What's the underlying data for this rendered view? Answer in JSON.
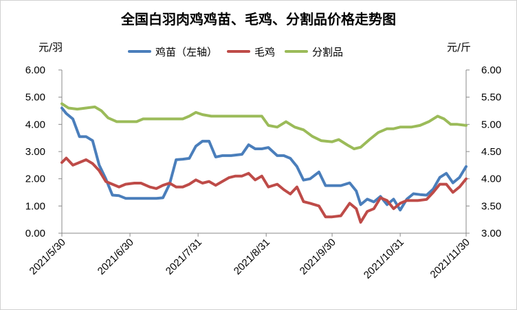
{
  "chart_data": {
    "type": "line",
    "title": "全国白羽肉鸡鸡苗、毛鸡、分割品价格走势图",
    "left_unit": "元/羽",
    "right_unit": "元/斤",
    "yleft_lim": [
      0,
      6
    ],
    "yright_lim": [
      3,
      6
    ],
    "yleft_ticks": [
      "0.00",
      "1.00",
      "2.00",
      "3.00",
      "4.00",
      "5.00",
      "6.00"
    ],
    "yright_ticks": [
      "3.00",
      "3.50",
      "4.00",
      "4.50",
      "5.00",
      "5.50",
      "6.00"
    ],
    "x_ticks": [
      "2021/5/30",
      "2021/6/30",
      "2021/7/31",
      "2021/8/31",
      "2021/9/30",
      "2021/10/31",
      "2021/11/30"
    ],
    "grid": false,
    "legend_position": "top",
    "series": [
      {
        "name": "鸡苗（左轴）",
        "axis": "left",
        "color": "#4a7ebb",
        "points": [
          [
            "2021-05-30",
            4.6
          ],
          [
            "2021-06-01",
            4.4
          ],
          [
            "2021-06-04",
            4.2
          ],
          [
            "2021-06-07",
            3.55
          ],
          [
            "2021-06-10",
            3.55
          ],
          [
            "2021-06-13",
            3.4
          ],
          [
            "2021-06-16",
            2.5
          ],
          [
            "2021-06-19",
            2.0
          ],
          [
            "2021-06-22",
            1.4
          ],
          [
            "2021-06-25",
            1.38
          ],
          [
            "2021-06-28",
            1.28
          ],
          [
            "2021-07-02",
            1.28
          ],
          [
            "2021-07-09",
            1.28
          ],
          [
            "2021-07-12",
            1.28
          ],
          [
            "2021-07-15",
            1.3
          ],
          [
            "2021-07-18",
            1.8
          ],
          [
            "2021-07-21",
            2.7
          ],
          [
            "2021-07-24",
            2.72
          ],
          [
            "2021-07-27",
            2.75
          ],
          [
            "2021-07-30",
            3.2
          ],
          [
            "2021-08-02",
            3.38
          ],
          [
            "2021-08-05",
            3.38
          ],
          [
            "2021-08-08",
            2.8
          ],
          [
            "2021-08-11",
            2.85
          ],
          [
            "2021-08-15",
            2.85
          ],
          [
            "2021-08-20",
            2.9
          ],
          [
            "2021-08-23",
            3.25
          ],
          [
            "2021-08-26",
            3.1
          ],
          [
            "2021-08-29",
            3.1
          ],
          [
            "2021-09-01",
            3.15
          ],
          [
            "2021-09-05",
            2.85
          ],
          [
            "2021-09-08",
            2.85
          ],
          [
            "2021-09-11",
            2.75
          ],
          [
            "2021-09-14",
            2.45
          ],
          [
            "2021-09-17",
            1.95
          ],
          [
            "2021-09-20",
            2.0
          ],
          [
            "2021-09-24",
            2.25
          ],
          [
            "2021-09-27",
            1.75
          ],
          [
            "2021-09-30",
            1.75
          ],
          [
            "2021-10-04",
            1.75
          ],
          [
            "2021-10-08",
            1.85
          ],
          [
            "2021-10-11",
            1.55
          ],
          [
            "2021-10-13",
            1.05
          ],
          [
            "2021-10-16",
            1.25
          ],
          [
            "2021-10-19",
            1.15
          ],
          [
            "2021-10-22",
            1.35
          ],
          [
            "2021-10-25",
            1.05
          ],
          [
            "2021-10-28",
            1.25
          ],
          [
            "2021-10-31",
            0.85
          ],
          [
            "2021-11-03",
            1.25
          ],
          [
            "2021-11-06",
            1.45
          ],
          [
            "2021-11-09",
            1.42
          ],
          [
            "2021-11-12",
            1.4
          ],
          [
            "2021-11-15",
            1.62
          ],
          [
            "2021-11-18",
            2.05
          ],
          [
            "2021-11-21",
            2.2
          ],
          [
            "2021-11-24",
            1.85
          ],
          [
            "2021-11-27",
            2.05
          ],
          [
            "2021-11-30",
            2.45
          ]
        ]
      },
      {
        "name": "毛鸡",
        "axis": "right",
        "color": "#be4b48",
        "points": [
          [
            "2021-05-30",
            4.3
          ],
          [
            "2021-06-01",
            4.38
          ],
          [
            "2021-06-04",
            4.25
          ],
          [
            "2021-06-07",
            4.3
          ],
          [
            "2021-06-10",
            4.35
          ],
          [
            "2021-06-13",
            4.28
          ],
          [
            "2021-06-16",
            4.15
          ],
          [
            "2021-06-19",
            3.95
          ],
          [
            "2021-06-22",
            3.9
          ],
          [
            "2021-06-25",
            3.85
          ],
          [
            "2021-06-28",
            3.9
          ],
          [
            "2021-07-02",
            3.92
          ],
          [
            "2021-07-05",
            3.92
          ],
          [
            "2021-07-09",
            3.85
          ],
          [
            "2021-07-12",
            3.82
          ],
          [
            "2021-07-15",
            3.88
          ],
          [
            "2021-07-18",
            3.92
          ],
          [
            "2021-07-21",
            3.85
          ],
          [
            "2021-07-24",
            3.85
          ],
          [
            "2021-07-27",
            3.9
          ],
          [
            "2021-07-30",
            3.98
          ],
          [
            "2021-08-02",
            3.92
          ],
          [
            "2021-08-05",
            3.95
          ],
          [
            "2021-08-08",
            3.88
          ],
          [
            "2021-08-11",
            3.95
          ],
          [
            "2021-08-14",
            4.02
          ],
          [
            "2021-08-17",
            4.05
          ],
          [
            "2021-08-20",
            4.05
          ],
          [
            "2021-08-23",
            4.1
          ],
          [
            "2021-08-26",
            3.98
          ],
          [
            "2021-08-29",
            4.05
          ],
          [
            "2021-09-01",
            3.85
          ],
          [
            "2021-09-05",
            3.9
          ],
          [
            "2021-09-08",
            3.8
          ],
          [
            "2021-09-11",
            3.72
          ],
          [
            "2021-09-14",
            3.85
          ],
          [
            "2021-09-17",
            3.58
          ],
          [
            "2021-09-20",
            3.55
          ],
          [
            "2021-09-24",
            3.5
          ],
          [
            "2021-09-27",
            3.3
          ],
          [
            "2021-09-30",
            3.3
          ],
          [
            "2021-10-04",
            3.32
          ],
          [
            "2021-10-08",
            3.55
          ],
          [
            "2021-10-11",
            3.45
          ],
          [
            "2021-10-13",
            3.2
          ],
          [
            "2021-10-16",
            3.4
          ],
          [
            "2021-10-19",
            3.45
          ],
          [
            "2021-10-22",
            3.65
          ],
          [
            "2021-10-25",
            3.6
          ],
          [
            "2021-10-28",
            3.45
          ],
          [
            "2021-10-31",
            3.55
          ],
          [
            "2021-11-03",
            3.6
          ],
          [
            "2021-11-08",
            3.6
          ],
          [
            "2021-11-12",
            3.62
          ],
          [
            "2021-11-15",
            3.75
          ],
          [
            "2021-11-18",
            3.9
          ],
          [
            "2021-11-21",
            3.9
          ],
          [
            "2021-11-24",
            3.75
          ],
          [
            "2021-11-27",
            3.85
          ],
          [
            "2021-11-30",
            4.0
          ]
        ]
      },
      {
        "name": "分割品",
        "axis": "right",
        "color": "#9bbb59",
        "points": [
          [
            "2021-05-30",
            5.38
          ],
          [
            "2021-06-02",
            5.3
          ],
          [
            "2021-06-06",
            5.28
          ],
          [
            "2021-06-10",
            5.3
          ],
          [
            "2021-06-14",
            5.32
          ],
          [
            "2021-06-17",
            5.25
          ],
          [
            "2021-06-20",
            5.12
          ],
          [
            "2021-06-24",
            5.05
          ],
          [
            "2021-06-27",
            5.05
          ],
          [
            "2021-06-30",
            5.05
          ],
          [
            "2021-07-03",
            5.05
          ],
          [
            "2021-07-06",
            5.1
          ],
          [
            "2021-07-12",
            5.1
          ],
          [
            "2021-07-18",
            5.1
          ],
          [
            "2021-07-24",
            5.1
          ],
          [
            "2021-07-27",
            5.15
          ],
          [
            "2021-07-30",
            5.22
          ],
          [
            "2021-08-02",
            5.18
          ],
          [
            "2021-08-06",
            5.15
          ],
          [
            "2021-08-12",
            5.15
          ],
          [
            "2021-08-18",
            5.15
          ],
          [
            "2021-08-24",
            5.15
          ],
          [
            "2021-08-29",
            5.15
          ],
          [
            "2021-09-01",
            4.98
          ],
          [
            "2021-09-05",
            4.95
          ],
          [
            "2021-09-09",
            5.05
          ],
          [
            "2021-09-13",
            4.95
          ],
          [
            "2021-09-17",
            4.9
          ],
          [
            "2021-09-21",
            4.78
          ],
          [
            "2021-09-25",
            4.7
          ],
          [
            "2021-09-30",
            4.68
          ],
          [
            "2021-10-03",
            4.72
          ],
          [
            "2021-10-07",
            4.62
          ],
          [
            "2021-10-10",
            4.55
          ],
          [
            "2021-10-13",
            4.58
          ],
          [
            "2021-10-17",
            4.72
          ],
          [
            "2021-10-21",
            4.85
          ],
          [
            "2021-10-25",
            4.92
          ],
          [
            "2021-10-28",
            4.92
          ],
          [
            "2021-10-31",
            4.95
          ],
          [
            "2021-11-05",
            4.95
          ],
          [
            "2021-11-09",
            4.98
          ],
          [
            "2021-11-13",
            5.05
          ],
          [
            "2021-11-17",
            5.15
          ],
          [
            "2021-11-20",
            5.1
          ],
          [
            "2021-11-23",
            5.0
          ],
          [
            "2021-11-26",
            5.0
          ],
          [
            "2021-11-30",
            4.98
          ]
        ]
      }
    ]
  }
}
